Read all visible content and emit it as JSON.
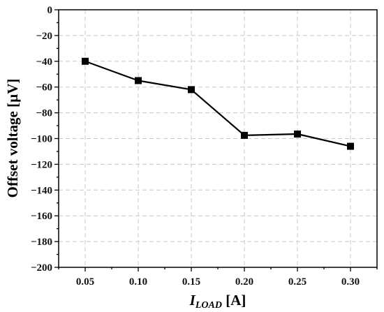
{
  "chart_data": {
    "type": "line",
    "title": "",
    "xlabel": {
      "main": "I",
      "sub": "LOAD",
      "unit": " [A]"
    },
    "ylabel": "Offset voltage [µV]",
    "x": [
      0.05,
      0.1,
      0.15,
      0.2,
      0.25,
      0.3
    ],
    "xticks": [
      "0.05",
      "0.10",
      "0.15",
      "0.20",
      "0.25",
      "0.30"
    ],
    "xlim": [
      0.025,
      0.325
    ],
    "ylim": [
      -200,
      0
    ],
    "yticks": [
      "0",
      "−20",
      "−40",
      "−60",
      "−80",
      "−100",
      "−120",
      "−140",
      "−160",
      "−180",
      "−200"
    ],
    "ytick_values": [
      0,
      -20,
      -40,
      -60,
      -80,
      -100,
      -120,
      -140,
      -160,
      -180,
      -200
    ],
    "grid": true,
    "series": [
      {
        "values": [
          -40,
          -55,
          -62,
          -97.5,
          -96.5,
          -106
        ],
        "color": "#000000",
        "marker": "square"
      }
    ]
  }
}
